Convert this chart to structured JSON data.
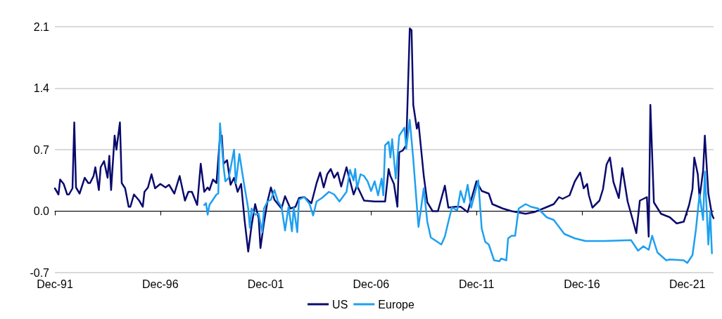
{
  "chart_data": {
    "type": "line",
    "xlim": [
      "1991-12",
      "2023-03"
    ],
    "xticks": [
      {
        "value": "1991-12",
        "label": "Dec-91"
      },
      {
        "value": "1996-12",
        "label": "Dec-96"
      },
      {
        "value": "2001-12",
        "label": "Dec-01"
      },
      {
        "value": "2006-12",
        "label": "Dec-06"
      },
      {
        "value": "2011-12",
        "label": "Dec-11"
      },
      {
        "value": "2016-12",
        "label": "Dec-16"
      },
      {
        "value": "2021-12",
        "label": "Dec-21"
      }
    ],
    "ylim": [
      -0.7,
      2.1
    ],
    "yticks": [
      -0.7,
      {
        "value": 0,
        "label": "0.0"
      },
      0.7,
      1.4,
      2.1
    ],
    "grid": "y",
    "legend": "bottom",
    "marker": "none",
    "line_style": "solid",
    "series": [
      {
        "name": "US",
        "color": "#0a0a6e",
        "x": [
          "1991-12",
          "1992-02",
          "1992-03",
          "1992-05",
          "1992-07",
          "1992-08",
          "1992-10",
          "1992-11",
          "1992-12",
          "1993-02",
          "1993-05",
          "1993-07",
          "1993-08",
          "1993-10",
          "1993-11",
          "1994-01",
          "1994-02",
          "1994-04",
          "1994-06",
          "1994-07",
          "1994-08",
          "1994-10",
          "1994-11",
          "1995-01",
          "1995-02",
          "1995-04",
          "1995-06",
          "1995-07",
          "1995-09",
          "1995-12",
          "1996-02",
          "1996-03",
          "1996-05",
          "1996-07",
          "1996-09",
          "1996-12",
          "1997-03",
          "1997-05",
          "1997-08",
          "1997-11",
          "1998-02",
          "1998-04",
          "1998-06",
          "1998-09",
          "1998-11",
          "1999-01",
          "1999-03",
          "1999-04",
          "1999-06",
          "1999-08",
          "1999-10",
          "1999-11",
          "1999-12",
          "2000-02",
          "2000-04",
          "2000-06",
          "2000-08",
          "2000-10",
          "2000-12",
          "2001-02",
          "2001-04",
          "2001-06",
          "2001-08",
          "2001-09",
          "2001-11",
          "2002-01",
          "2002-03",
          "2002-05",
          "2002-07",
          "2002-09",
          "2002-11",
          "2003-02",
          "2003-05",
          "2003-07",
          "2003-10",
          "2004-02",
          "2004-05",
          "2004-07",
          "2004-09",
          "2004-11",
          "2005-01",
          "2005-03",
          "2005-05",
          "2005-07",
          "2005-10",
          "2006-02",
          "2006-04",
          "2006-08",
          "2007-02",
          "2007-08",
          "2007-10",
          "2007-11",
          "2008-01",
          "2008-03",
          "2008-04",
          "2008-06",
          "2008-08",
          "2008-10",
          "2008-11",
          "2008-12",
          "2009-02",
          "2009-03",
          "2009-06",
          "2009-08",
          "2009-11",
          "2010-02",
          "2010-06",
          "2010-08",
          "2010-12",
          "2011-03",
          "2011-07",
          "2011-12",
          "2012-03",
          "2012-07",
          "2012-09",
          "2013-03",
          "2013-08",
          "2014-04",
          "2014-09",
          "2015-02",
          "2015-08",
          "2015-11",
          "2016-01",
          "2016-05",
          "2016-08",
          "2016-11",
          "2017-01",
          "2017-03",
          "2017-04",
          "2017-06",
          "2017-10",
          "2017-12",
          "2018-02",
          "2018-04",
          "2018-06",
          "2018-09",
          "2018-11",
          "2019-02",
          "2019-05",
          "2019-07",
          "2019-09",
          "2020-01",
          "2020-02",
          "2020-03",
          "2020-05",
          "2020-09",
          "2021-02",
          "2021-06",
          "2021-10",
          "2022-01",
          "2022-03",
          "2022-04",
          "2022-06",
          "2022-07",
          "2022-09",
          "2022-10",
          "2022-12",
          "2023-02",
          "2023-03"
        ],
        "values": [
          0.26,
          0.19,
          0.36,
          0.31,
          0.19,
          0.19,
          0.26,
          1.01,
          0.27,
          0.2,
          0.38,
          0.32,
          0.32,
          0.4,
          0.5,
          0.24,
          0.5,
          0.57,
          0.38,
          0.63,
          0.24,
          0.86,
          0.7,
          1.01,
          0.32,
          0.26,
          0.05,
          0.05,
          0.19,
          0.12,
          0.05,
          0.22,
          0.27,
          0.42,
          0.26,
          0.31,
          0.27,
          0.3,
          0.2,
          0.4,
          0.12,
          0.22,
          0.22,
          0.07,
          0.54,
          0.22,
          0.27,
          0.24,
          0.36,
          0.32,
          0.85,
          0.86,
          0.54,
          0.58,
          0.3,
          0.38,
          0.22,
          0.31,
          -0.11,
          -0.46,
          -0.16,
          0.08,
          -0.08,
          -0.42,
          -0.13,
          0.11,
          0.27,
          0.13,
          0.08,
          0.03,
          0.17,
          0.03,
          0.05,
          0.15,
          0.16,
          0.09,
          0.32,
          0.44,
          0.27,
          0.42,
          0.48,
          0.38,
          0.44,
          0.28,
          0.5,
          0.19,
          0.29,
          0.12,
          0.11,
          0.11,
          0.48,
          0.4,
          0.31,
          0.05,
          0.67,
          0.69,
          0.75,
          2.08,
          2.06,
          1.21,
          0.94,
          1.01,
          0.4,
          0.1,
          0.0,
          0.0,
          0.29,
          0.04,
          0.05,
          0.05,
          -0.01,
          0.34,
          0.23,
          0.2,
          0.08,
          0.03,
          0.0,
          -0.03,
          -0.01,
          0.03,
          0.08,
          0.16,
          0.14,
          0.18,
          0.34,
          0.44,
          0.26,
          0.31,
          0.18,
          0.04,
          0.12,
          0.25,
          0.53,
          0.61,
          0.33,
          0.15,
          0.49,
          0.11,
          -0.1,
          -0.25,
          0.12,
          0.16,
          -0.29,
          1.21,
          0.1,
          -0.03,
          -0.07,
          -0.14,
          -0.12,
          0.07,
          0.25,
          0.61,
          0.42,
          0.15,
          0.46,
          0.86,
          0.2,
          -0.04,
          -0.08
        ]
      },
      {
        "name": "Europe",
        "color": "#1ea0f0",
        "x": [
          "1999-01",
          "1999-02",
          "1999-03",
          "1999-04",
          "1999-06",
          "1999-08",
          "1999-09",
          "1999-10",
          "1999-12",
          "2000-01",
          "2000-03",
          "2000-06",
          "2000-07",
          "2000-09",
          "2000-11",
          "2000-12",
          "2001-02",
          "2001-03",
          "2001-04",
          "2001-06",
          "2001-08",
          "2001-10",
          "2001-11",
          "2002-01",
          "2002-03",
          "2002-05",
          "2002-07",
          "2002-09",
          "2002-11",
          "2003-01",
          "2003-03",
          "2003-04",
          "2003-06",
          "2003-07",
          "2003-10",
          "2004-01",
          "2004-03",
          "2004-05",
          "2004-08",
          "2004-12",
          "2005-03",
          "2005-06",
          "2005-10",
          "2005-12",
          "2006-02",
          "2006-03",
          "2006-04",
          "2006-06",
          "2006-08",
          "2006-10",
          "2006-12",
          "2007-02",
          "2007-04",
          "2007-06",
          "2007-07",
          "2007-08",
          "2007-10",
          "2007-11",
          "2007-12",
          "2008-02",
          "2008-04",
          "2008-07",
          "2008-08",
          "2008-10",
          "2008-12",
          "2009-03",
          "2009-06",
          "2009-08",
          "2009-10",
          "2010-01",
          "2010-04",
          "2010-06",
          "2010-08",
          "2010-10",
          "2011-01",
          "2011-03",
          "2011-05",
          "2011-07",
          "2011-09",
          "2012-01",
          "2012-03",
          "2012-05",
          "2012-07",
          "2012-10",
          "2013-01",
          "2013-02",
          "2013-05",
          "2013-06",
          "2013-08",
          "2013-10",
          "2013-12",
          "2014-04",
          "2014-07",
          "2014-11",
          "2015-04",
          "2015-08",
          "2016-02",
          "2016-08",
          "2017-02",
          "2018-01",
          "2019-04",
          "2019-08",
          "2019-11",
          "2020-02",
          "2020-04",
          "2020-07",
          "2020-12",
          "2021-02",
          "2021-10",
          "2021-12",
          "2022-03",
          "2022-05",
          "2022-07",
          "2022-09",
          "2022-10",
          "2022-12",
          "2023-01",
          "2023-02"
        ],
        "values": [
          0.07,
          0.09,
          -0.04,
          0.07,
          0.13,
          0.19,
          0.2,
          1.0,
          0.51,
          0.34,
          0.38,
          0.7,
          0.32,
          0.65,
          0.39,
          0.27,
          0.03,
          -0.19,
          0.03,
          -0.04,
          -0.03,
          -0.24,
          0.03,
          0.11,
          0.13,
          0.24,
          0.11,
          0.05,
          -0.22,
          0.05,
          -0.23,
          0.04,
          -0.24,
          0.13,
          0.16,
          0.08,
          -0.05,
          0.11,
          0.15,
          0.22,
          0.19,
          0.11,
          0.22,
          0.47,
          0.35,
          0.48,
          0.26,
          0.42,
          0.4,
          0.34,
          0.23,
          0.34,
          0.18,
          0.37,
          0.18,
          0.75,
          0.79,
          0.61,
          0.82,
          0.37,
          0.86,
          0.95,
          0.71,
          1.04,
          0.59,
          -0.18,
          0.26,
          -0.12,
          -0.3,
          -0.34,
          -0.38,
          -0.29,
          -0.12,
          0.04,
          0.01,
          0.23,
          0.1,
          0.3,
          0.04,
          0.35,
          -0.2,
          -0.35,
          -0.38,
          -0.56,
          -0.57,
          -0.54,
          -0.56,
          -0.31,
          -0.28,
          -0.28,
          0.03,
          0.08,
          0.05,
          0.03,
          -0.07,
          -0.1,
          -0.26,
          -0.31,
          -0.34,
          -0.34,
          -0.33,
          -0.45,
          -0.4,
          -0.44,
          -0.28,
          -0.47,
          -0.56,
          -0.55,
          -0.56,
          -0.59,
          -0.5,
          -0.2,
          0.19,
          -0.1,
          0.45,
          -0.38,
          0.0,
          -0.48
        ]
      }
    ]
  }
}
